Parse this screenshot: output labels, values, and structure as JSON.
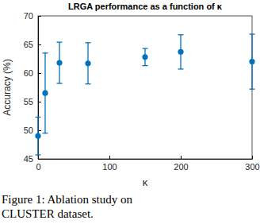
{
  "chart_data": {
    "type": "scatter",
    "title": "LRGA performance as a function of κ",
    "x_label": "κ",
    "y_label": "Accuracy (%)",
    "x": [
      0,
      10,
      30,
      70,
      150,
      200,
      300
    ],
    "values": [
      49,
      56.5,
      61.8,
      61.7,
      62.8,
      63.7,
      62
    ],
    "errors": [
      3.3,
      7,
      3.6,
      3.6,
      1.5,
      3,
      4.8
    ],
    "color": "#0072bd",
    "marker": "circle",
    "xlim": [
      0,
      300
    ],
    "xticks": [
      0,
      100,
      200,
      300
    ],
    "ylim": [
      45,
      70
    ],
    "yticks": [
      45,
      50,
      55,
      60,
      65,
      70
    ],
    "grid": false
  },
  "caption": [
    "Figure 1: Ablation study on",
    "CLUSTER dataset."
  ]
}
